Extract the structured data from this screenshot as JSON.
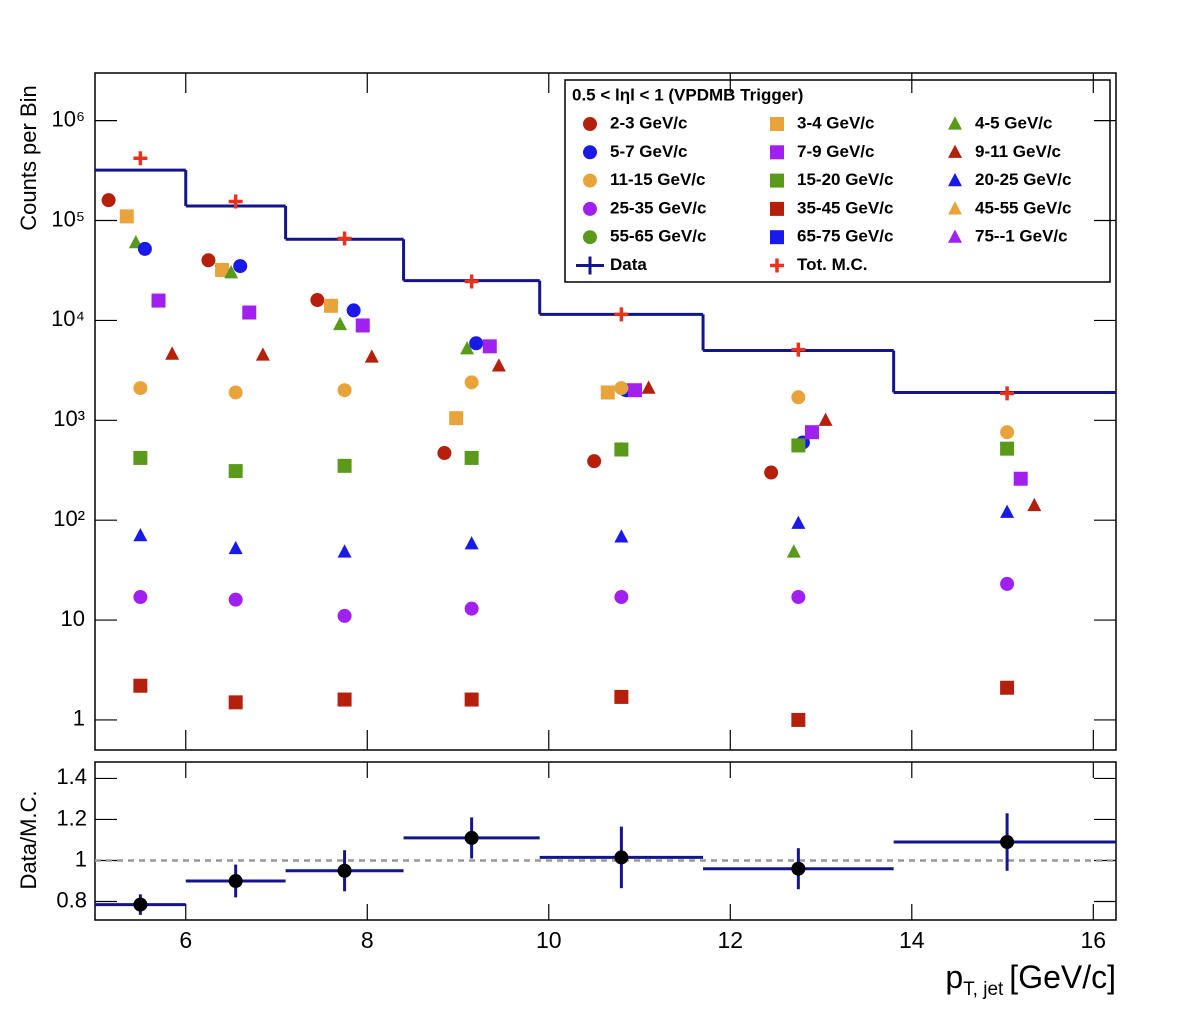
{
  "chart_data": [
    {
      "type": "scatter",
      "ylabel": "Counts per Bin",
      "log_y": true,
      "xlim": [
        5,
        16.25
      ],
      "ylim": [
        0.5,
        3000000
      ],
      "xticks": [
        6,
        8,
        10,
        12,
        14,
        16
      ],
      "yticks": [
        1,
        10,
        {
          "value": 100,
          "label": "10²"
        },
        {
          "value": 1000,
          "label": "10³"
        },
        {
          "value": 10000,
          "label": "10⁴"
        },
        {
          "value": 100000,
          "label": "10⁵"
        },
        {
          "value": 1000000,
          "label": "10⁶"
        }
      ],
      "legend_title": "0.5 < lηl < 1 (VPDMB Trigger)",
      "series": [
        {
          "name": "2-3 GeV/c",
          "color": "#b5200d",
          "marker": "circle",
          "x": [
            5.15,
            6.25,
            7.45,
            8.85,
            10.5,
            12.45
          ],
          "values": [
            160000,
            40000,
            16000,
            470,
            390,
            300
          ]
        },
        {
          "name": "3-4 GeV/c",
          "color": "#e8a33a",
          "marker": "square",
          "x": [
            5.35,
            6.4,
            7.6,
            8.98,
            10.65
          ],
          "values": [
            110000,
            32000,
            14000,
            1050,
            1900
          ]
        },
        {
          "name": "4-5 GeV/c",
          "color": "#5a9a1a",
          "marker": "triangle",
          "x": [
            5.45,
            6.5,
            7.7,
            9.1,
            10.8,
            12.7
          ],
          "values": [
            60000,
            30000,
            9100,
            5200,
            510,
            48
          ]
        },
        {
          "name": "5-7 GeV/c",
          "color": "#1a1ae8",
          "marker": "circle",
          "x": [
            5.55,
            6.6,
            7.85,
            9.2,
            10.85,
            12.8
          ],
          "values": [
            52000,
            35000,
            12600,
            5900,
            2000,
            600
          ]
        },
        {
          "name": "7-9 GeV/c",
          "color": "#a020f0",
          "marker": "square",
          "x": [
            5.7,
            6.7,
            7.95,
            9.35,
            10.95,
            12.9,
            15.2
          ],
          "values": [
            15800,
            12000,
            8900,
            5500,
            2000,
            760,
            260
          ]
        },
        {
          "name": "9-11 GeV/c",
          "color": "#b5200d",
          "marker": "triangle",
          "x": [
            5.85,
            6.85,
            8.05,
            9.45,
            11.1,
            13.05,
            15.35
          ],
          "values": [
            4600,
            4500,
            4300,
            3500,
            2100,
            1000,
            140
          ]
        },
        {
          "name": "11-15 GeV/c",
          "color": "#e8a33a",
          "marker": "circle",
          "x": [
            5.5,
            6.55,
            7.75,
            9.15,
            10.8,
            12.75,
            15.05
          ],
          "values": [
            2100,
            1900,
            2000,
            2400,
            2100,
            1700,
            760
          ]
        },
        {
          "name": "15-20 GeV/c",
          "color": "#5a9a1a",
          "marker": "square",
          "x": [
            5.5,
            6.55,
            7.75,
            9.15,
            10.8,
            12.75,
            15.05
          ],
          "values": [
            420,
            310,
            350,
            420,
            510,
            560,
            520
          ]
        },
        {
          "name": "20-25 GeV/c",
          "color": "#1a1ae8",
          "marker": "triangle",
          "x": [
            5.5,
            6.55,
            7.75,
            9.15,
            10.8,
            12.75,
            15.05
          ],
          "values": [
            70,
            52,
            48,
            58,
            68,
            93,
            120
          ]
        },
        {
          "name": "25-35 GeV/c",
          "color": "#a020f0",
          "marker": "circle",
          "x": [
            5.5,
            6.55,
            7.75,
            9.15,
            10.8,
            12.75,
            15.05
          ],
          "values": [
            17,
            16,
            11,
            13,
            17,
            17,
            23
          ]
        },
        {
          "name": "35-45 GeV/c",
          "color": "#b5200d",
          "marker": "square",
          "x": [
            5.5,
            6.55,
            7.75,
            9.15,
            10.8,
            12.75,
            15.05
          ],
          "values": [
            2.2,
            1.5,
            1.6,
            1.6,
            1.7,
            1,
            2.1
          ]
        },
        {
          "name": "45-55 GeV/c",
          "color": "#e8a33a",
          "marker": "triangle",
          "x": [],
          "values": []
        },
        {
          "name": "55-65 GeV/c",
          "color": "#5a9a1a",
          "marker": "circle",
          "x": [],
          "values": []
        },
        {
          "name": "65-75 GeV/c",
          "color": "#1a1ae8",
          "marker": "square",
          "x": [],
          "values": []
        },
        {
          "name": "75--1 GeV/c",
          "color": "#a020f0",
          "marker": "triangle",
          "x": [],
          "values": []
        }
      ],
      "histogram": {
        "name": "Data",
        "color": "#14148c",
        "bins": [
          5,
          6,
          7.1,
          8.4,
          9.9,
          11.7,
          13.8,
          16.25
        ],
        "values": [
          320000,
          140000,
          65000,
          25000,
          11500,
          5000,
          1900
        ]
      },
      "mc": {
        "name": "Tot. M.C.",
        "color": "#e8321e",
        "marker": "cross",
        "x": [
          5.5,
          6.55,
          7.75,
          9.15,
          10.8,
          12.75,
          15.05
        ],
        "values": [
          420000,
          155000,
          66000,
          24500,
          11500,
          5100,
          1860
        ]
      }
    },
    {
      "type": "ratio",
      "ylabel": "Data/M.C.",
      "xlabel": "p",
      "xlabel_sub": "T, jet",
      "xlabel_unit": "[GeV/c]",
      "xlim": [
        5,
        16.25
      ],
      "ylim": [
        0.71,
        1.48
      ],
      "xticks": [
        6,
        8,
        10,
        12,
        14,
        16
      ],
      "yticks": [
        0.8,
        1,
        1.2,
        1.4
      ],
      "reference_line": 1,
      "color": "#14148c",
      "bins": [
        5,
        6,
        7.1,
        8.4,
        9.9,
        11.7,
        13.8,
        16.25
      ],
      "x": [
        5.5,
        6.55,
        7.75,
        9.15,
        10.8,
        12.75,
        15.05
      ],
      "values": [
        0.785,
        0.9,
        0.95,
        1.11,
        1.015,
        0.96,
        1.09
      ],
      "errors": [
        0.05,
        0.08,
        0.1,
        0.1,
        0.15,
        0.1,
        0.14
      ]
    }
  ]
}
